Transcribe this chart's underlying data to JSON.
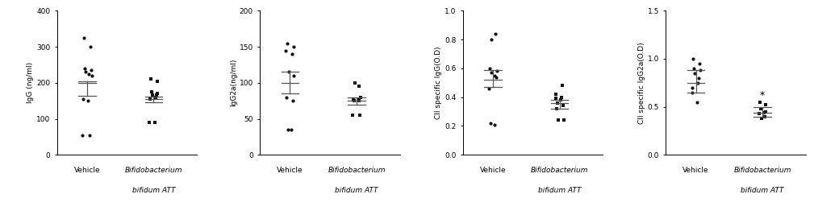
{
  "panels": [
    {
      "ylabel": "IgG (ng/ml)",
      "ylim": [
        0,
        400
      ],
      "yticks": [
        0,
        100,
        200,
        300,
        400
      ],
      "vehicle_dots": [
        325,
        300,
        240,
        235,
        230,
        225,
        220,
        155,
        150,
        55,
        55
      ],
      "vehicle_mean": 200,
      "vehicle_sem_low": 163,
      "vehicle_sem_high": 205,
      "bifidum_dots": [
        210,
        205,
        175,
        170,
        165,
        165,
        160,
        155,
        90,
        90
      ],
      "bifidum_mean": 155,
      "bifidum_sem_low": 145,
      "bifidum_sem_high": 162,
      "significance": ""
    },
    {
      "ylabel": "IgG2a(ng/ml)",
      "ylim": [
        0,
        200
      ],
      "yticks": [
        0,
        50,
        100,
        150,
        200
      ],
      "vehicle_dots": [
        155,
        150,
        145,
        140,
        115,
        110,
        80,
        75,
        35,
        35
      ],
      "vehicle_mean": 100,
      "vehicle_sem_low": 85,
      "vehicle_sem_high": 115,
      "bifidum_dots": [
        100,
        95,
        80,
        77,
        77,
        75,
        75,
        55,
        55
      ],
      "bifidum_mean": 75,
      "bifidum_sem_low": 70,
      "bifidum_sem_high": 80,
      "significance": ""
    },
    {
      "ylabel": "CII specific IgG(O.D)",
      "ylim": [
        0.0,
        1.0
      ],
      "yticks": [
        0.0,
        0.2,
        0.4,
        0.6,
        0.8,
        1.0
      ],
      "vehicle_dots": [
        0.8,
        0.84,
        0.6,
        0.58,
        0.57,
        0.55,
        0.54,
        0.46,
        0.22,
        0.21
      ],
      "vehicle_mean": 0.52,
      "vehicle_sem_low": 0.47,
      "vehicle_sem_high": 0.59,
      "bifidum_dots": [
        0.48,
        0.42,
        0.4,
        0.39,
        0.38,
        0.36,
        0.34,
        0.32,
        0.24,
        0.24
      ],
      "bifidum_mean": 0.36,
      "bifidum_sem_low": 0.32,
      "bifidum_sem_high": 0.38,
      "significance": ""
    },
    {
      "ylabel": "CII specific IgG2a(O.D)",
      "ylim": [
        0.0,
        1.5
      ],
      "yticks": [
        0.0,
        0.5,
        1.0,
        1.5
      ],
      "vehicle_dots": [
        1.0,
        0.95,
        0.9,
        0.88,
        0.85,
        0.8,
        0.75,
        0.7,
        0.65,
        0.55
      ],
      "vehicle_mean": 0.75,
      "vehicle_sem_low": 0.65,
      "vehicle_sem_high": 0.88,
      "bifidum_dots": [
        0.55,
        0.52,
        0.48,
        0.45,
        0.44,
        0.43,
        0.4,
        0.38
      ],
      "bifidum_mean": 0.44,
      "bifidum_sem_low": 0.4,
      "bifidum_sem_high": 0.5,
      "significance": "*"
    }
  ],
  "xlabel_vehicle": "Vehicle",
  "xlabel_bifidum_line1": "Bifidobacterium",
  "xlabel_bifidum_line2": "bifidum ATT",
  "dot_color": "#111111",
  "line_color": "#555555",
  "bg_color": "#ffffff",
  "fontsize": 6.5,
  "marker_size": 9
}
